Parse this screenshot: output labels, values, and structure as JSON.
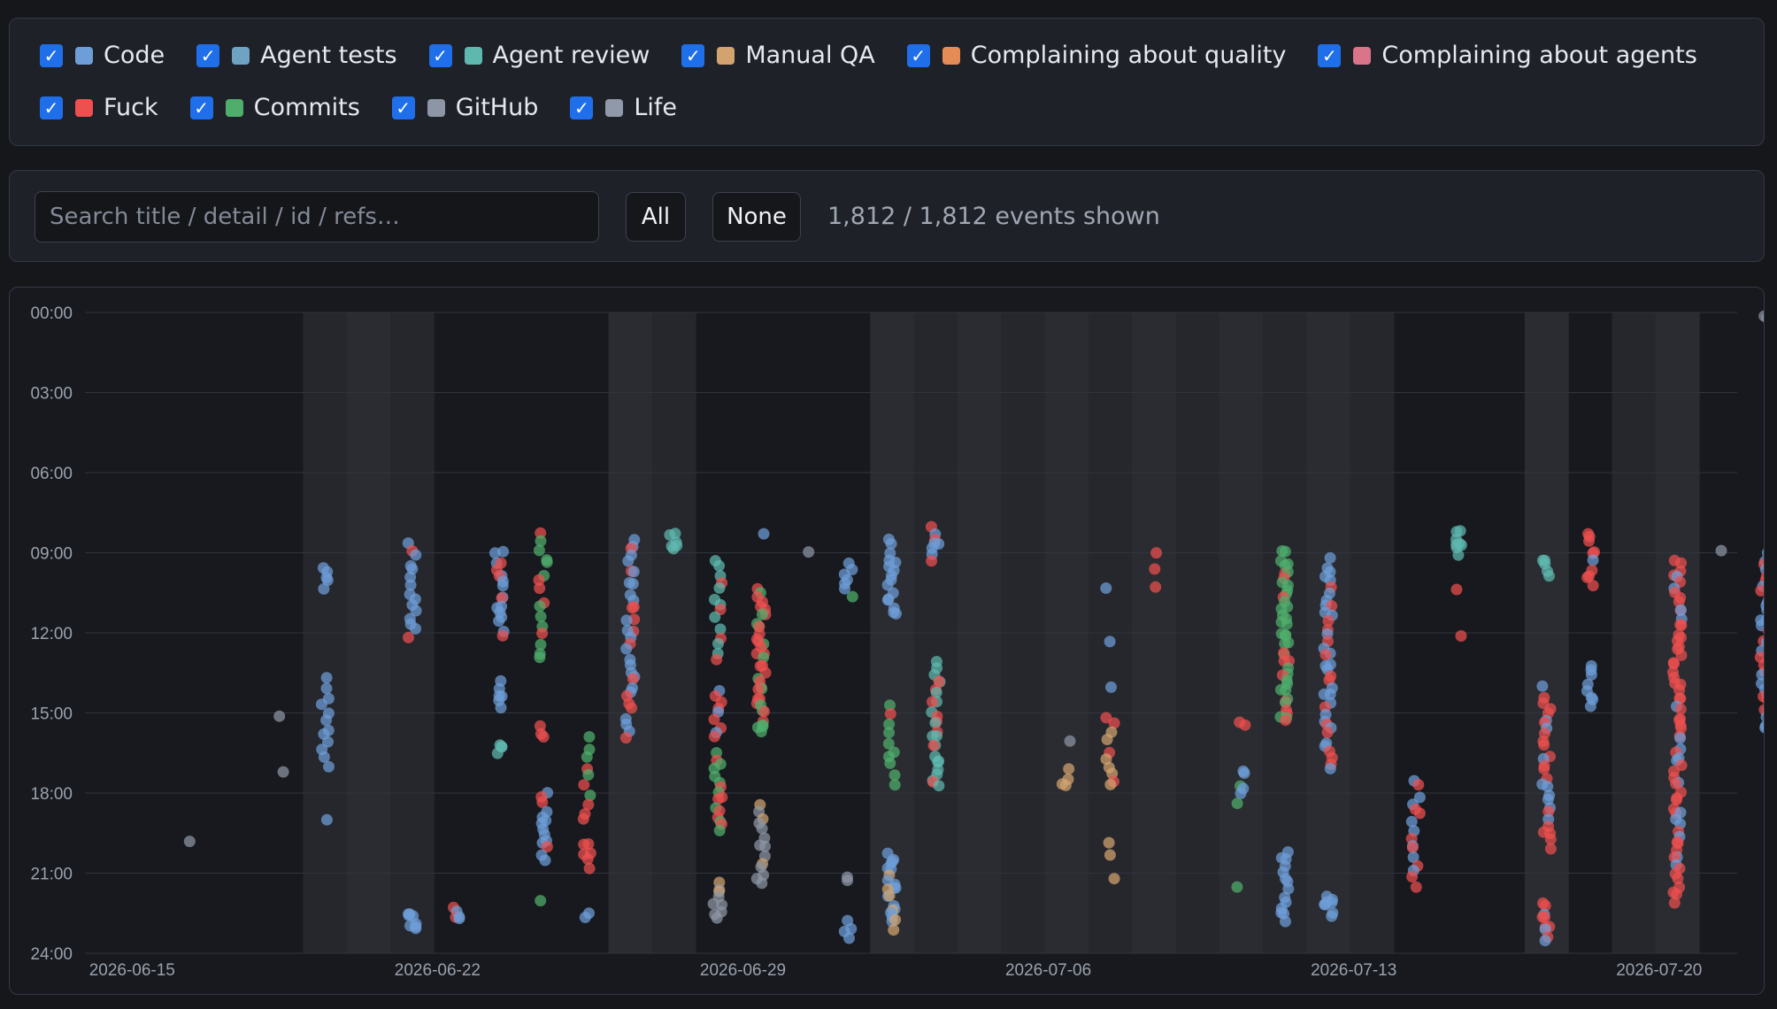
{
  "filters": [
    {
      "label": "Code",
      "color": "#6d9ed8",
      "checked": true
    },
    {
      "label": "Agent tests",
      "color": "#6fa3c4",
      "checked": true
    },
    {
      "label": "Agent review",
      "color": "#5eb8ae",
      "checked": true
    },
    {
      "label": "Manual QA",
      "color": "#d3a36f",
      "checked": true
    },
    {
      "label": "Complaining about quality",
      "color": "#e58b56",
      "checked": true
    },
    {
      "label": "Complaining about agents",
      "color": "#da7488",
      "checked": true
    },
    {
      "label": "Fuck",
      "color": "#ee4f4f",
      "checked": true
    },
    {
      "label": "Commits",
      "color": "#4fae6c",
      "checked": true
    },
    {
      "label": "GitHub",
      "color": "#8d96a5",
      "checked": true
    },
    {
      "label": "Life",
      "color": "#9099aa",
      "checked": true
    }
  ],
  "controls": {
    "search_placeholder": "Search title / detail / id / refs…",
    "search_value": "",
    "all_label": "All",
    "none_label": "None",
    "count_text": "1,812 / 1,812 events shown"
  },
  "chart_data": {
    "type": "scatter",
    "title": "",
    "x_axis": {
      "type": "date",
      "min": "2026-06-14",
      "max": "2026-07-23",
      "tick_labels": [
        "2026-06-15",
        "2026-06-22",
        "2026-06-29",
        "2026-07-06",
        "2026-07-13",
        "2026-07-20"
      ]
    },
    "y_axis": {
      "unit": "time of day (hours)",
      "reversed": true,
      "min": 0,
      "max": 24,
      "tick_labels": [
        "00:00",
        "03:00",
        "06:00",
        "09:00",
        "12:00",
        "15:00",
        "18:00",
        "21:00",
        "24:00"
      ]
    },
    "shaded_days": [
      "2026-06-19",
      "2026-06-20",
      "2026-06-21",
      "2026-06-26",
      "2026-06-27",
      "2026-07-02",
      "2026-07-03",
      "2026-07-04",
      "2026-07-05",
      "2026-07-06",
      "2026-07-07",
      "2026-07-08",
      "2026-07-09",
      "2026-07-10",
      "2026-07-11",
      "2026-07-12",
      "2026-07-13",
      "2026-07-17",
      "2026-07-19",
      "2026-07-20"
    ],
    "grid": true,
    "clusters": [
      {
        "date": "2026-06-16",
        "from": 19.7,
        "to": 19.7,
        "n": 1,
        "cat": "GitHub"
      },
      {
        "date": "2026-06-18",
        "from": 15.2,
        "to": 17.2,
        "n": 2,
        "cat": "GitHub"
      },
      {
        "date": "2026-06-19",
        "from": 9.5,
        "to": 10.3,
        "n": 5,
        "cat": "Code"
      },
      {
        "date": "2026-06-19",
        "from": 13.8,
        "to": 17.0,
        "n": 12,
        "cat": "Code"
      },
      {
        "date": "2026-06-19",
        "from": 18.9,
        "to": 18.9,
        "n": 1,
        "cat": "Code"
      },
      {
        "date": "2026-06-21",
        "from": 8.7,
        "to": 12.2,
        "n": 15,
        "cat": "Code",
        "extra": "Fuck"
      },
      {
        "date": "2026-06-21",
        "from": 22.4,
        "to": 23.1,
        "n": 8,
        "cat": "Code"
      },
      {
        "date": "2026-06-22",
        "from": 22.4,
        "to": 22.8,
        "n": 5,
        "cat": "Code",
        "extra": "Fuck"
      },
      {
        "date": "2026-06-23",
        "from": 8.9,
        "to": 12.0,
        "n": 18,
        "cat": "Code",
        "extra": "Fuck"
      },
      {
        "date": "2026-06-23",
        "from": 13.9,
        "to": 14.8,
        "n": 6,
        "cat": "Code"
      },
      {
        "date": "2026-06-23",
        "from": 16.2,
        "to": 16.5,
        "n": 4,
        "cat": "Agent review"
      },
      {
        "date": "2026-06-24",
        "from": 8.2,
        "to": 13.0,
        "n": 16,
        "cat": "Commits",
        "extra": "Fuck"
      },
      {
        "date": "2026-06-24",
        "from": 15.6,
        "to": 15.9,
        "n": 3,
        "cat": "Fuck"
      },
      {
        "date": "2026-06-24",
        "from": 18.1,
        "to": 20.4,
        "n": 14,
        "cat": "Code",
        "extra": "Fuck"
      },
      {
        "date": "2026-06-24",
        "from": 22.1,
        "to": 22.1,
        "n": 1,
        "cat": "Commits"
      },
      {
        "date": "2026-06-25",
        "from": 16.0,
        "to": 19.0,
        "n": 10,
        "cat": "Commits",
        "extra": "Fuck"
      },
      {
        "date": "2026-06-25",
        "from": 19.8,
        "to": 20.8,
        "n": 6,
        "cat": "Fuck"
      },
      {
        "date": "2026-06-25",
        "from": 22.6,
        "to": 22.6,
        "n": 2,
        "cat": "Code"
      },
      {
        "date": "2026-06-26",
        "from": 8.5,
        "to": 15.8,
        "n": 34,
        "cat": "Code",
        "extra": "Fuck"
      },
      {
        "date": "2026-06-27",
        "from": 8.3,
        "to": 8.9,
        "n": 6,
        "cat": "Agent review"
      },
      {
        "date": "2026-06-28",
        "from": 9.2,
        "to": 13.0,
        "n": 14,
        "cat": "Agent review",
        "extra": "Fuck"
      },
      {
        "date": "2026-06-28",
        "from": 14.1,
        "to": 16.0,
        "n": 9,
        "cat": "Fuck",
        "extra": "Code"
      },
      {
        "date": "2026-06-28",
        "from": 16.6,
        "to": 19.4,
        "n": 16,
        "cat": "Commits",
        "extra": "Fuck"
      },
      {
        "date": "2026-06-28",
        "from": 21.3,
        "to": 22.8,
        "n": 9,
        "cat": "GitHub",
        "extra": "Manual QA"
      },
      {
        "date": "2026-06-29",
        "from": 8.2,
        "to": 8.2,
        "n": 1,
        "cat": "Code"
      },
      {
        "date": "2026-06-29",
        "from": 10.4,
        "to": 15.8,
        "n": 38,
        "cat": "Fuck",
        "extra": "Commits"
      },
      {
        "date": "2026-06-29",
        "from": 18.4,
        "to": 21.5,
        "n": 14,
        "cat": "GitHub",
        "extra": "Manual QA"
      },
      {
        "date": "2026-06-30",
        "from": 9.1,
        "to": 9.1,
        "n": 1,
        "cat": "GitHub"
      },
      {
        "date": "2026-07-01",
        "from": 10.6,
        "to": 10.6,
        "n": 1,
        "cat": "Commits"
      },
      {
        "date": "2026-07-01",
        "from": 9.3,
        "to": 10.4,
        "n": 6,
        "cat": "Code"
      },
      {
        "date": "2026-07-01",
        "from": 21.2,
        "to": 21.4,
        "n": 2,
        "cat": "GitHub"
      },
      {
        "date": "2026-07-01",
        "from": 22.8,
        "to": 23.4,
        "n": 4,
        "cat": "Code"
      },
      {
        "date": "2026-07-02",
        "from": 8.6,
        "to": 11.4,
        "n": 16,
        "cat": "Code"
      },
      {
        "date": "2026-07-02",
        "from": 14.8,
        "to": 17.6,
        "n": 10,
        "cat": "Commits",
        "extra": "Fuck"
      },
      {
        "date": "2026-07-02",
        "from": 20.3,
        "to": 23.0,
        "n": 22,
        "cat": "Code",
        "extra": "Manual QA"
      },
      {
        "date": "2026-07-03",
        "from": 8.1,
        "to": 9.2,
        "n": 8,
        "cat": "Code",
        "extra": "Fuck"
      },
      {
        "date": "2026-07-03",
        "from": 13.2,
        "to": 17.8,
        "n": 26,
        "cat": "Agent review",
        "extra": "Fuck"
      },
      {
        "date": "2026-07-06",
        "from": 16.0,
        "to": 16.0,
        "n": 1,
        "cat": "GitHub"
      },
      {
        "date": "2026-07-06",
        "from": 17.2,
        "to": 17.8,
        "n": 4,
        "cat": "Manual QA"
      },
      {
        "date": "2026-07-07",
        "from": 10.4,
        "to": 14.0,
        "n": 3,
        "cat": "Code"
      },
      {
        "date": "2026-07-07",
        "from": 15.2,
        "to": 17.8,
        "n": 10,
        "cat": "Manual QA",
        "extra": "Fuck"
      },
      {
        "date": "2026-07-07",
        "from": 19.8,
        "to": 21.1,
        "n": 3,
        "cat": "Manual QA"
      },
      {
        "date": "2026-07-08",
        "from": 9.0,
        "to": 10.2,
        "n": 3,
        "cat": "Fuck"
      },
      {
        "date": "2026-07-10",
        "from": 15.3,
        "to": 15.4,
        "n": 2,
        "cat": "Fuck"
      },
      {
        "date": "2026-07-10",
        "from": 17.1,
        "to": 18.4,
        "n": 6,
        "cat": "Code",
        "extra": "Commits"
      },
      {
        "date": "2026-07-10",
        "from": 21.6,
        "to": 21.6,
        "n": 1,
        "cat": "Commits"
      },
      {
        "date": "2026-07-11",
        "from": 8.9,
        "to": 15.4,
        "n": 44,
        "cat": "Commits",
        "extra": "Fuck"
      },
      {
        "date": "2026-07-11",
        "from": 20.2,
        "to": 22.8,
        "n": 14,
        "cat": "Code"
      },
      {
        "date": "2026-07-12",
        "from": 9.3,
        "to": 17.0,
        "n": 40,
        "cat": "Code",
        "extra": "Fuck"
      },
      {
        "date": "2026-07-12",
        "from": 21.8,
        "to": 22.5,
        "n": 8,
        "cat": "Code"
      },
      {
        "date": "2026-07-14",
        "from": 17.5,
        "to": 21.5,
        "n": 16,
        "cat": "Code",
        "extra": "Fuck"
      },
      {
        "date": "2026-07-15",
        "from": 8.2,
        "to": 9.0,
        "n": 8,
        "cat": "Agent review"
      },
      {
        "date": "2026-07-15",
        "from": 10.4,
        "to": 12.1,
        "n": 2,
        "cat": "Fuck"
      },
      {
        "date": "2026-07-17",
        "from": 9.2,
        "to": 9.8,
        "n": 5,
        "cat": "Agent review"
      },
      {
        "date": "2026-07-17",
        "from": 14.1,
        "to": 20.0,
        "n": 28,
        "cat": "Fuck",
        "extra": "Code"
      },
      {
        "date": "2026-07-17",
        "from": 22.2,
        "to": 23.5,
        "n": 10,
        "cat": "Fuck",
        "extra": "Code"
      },
      {
        "date": "2026-07-18",
        "from": 8.2,
        "to": 10.2,
        "n": 10,
        "cat": "Fuck",
        "extra": "Code"
      },
      {
        "date": "2026-07-18",
        "from": 13.2,
        "to": 14.8,
        "n": 8,
        "cat": "Code"
      },
      {
        "date": "2026-07-20",
        "from": 9.2,
        "to": 22.0,
        "n": 70,
        "cat": "Fuck",
        "extra": "Code"
      },
      {
        "date": "2026-07-21",
        "from": 9.0,
        "to": 9.0,
        "n": 1,
        "cat": "GitHub"
      },
      {
        "date": "2026-07-22",
        "from": 0.1,
        "to": 0.2,
        "n": 2,
        "cat": "GitHub"
      },
      {
        "date": "2026-07-22",
        "from": 9.0,
        "to": 15.6,
        "n": 34,
        "cat": "Code",
        "extra": "Fuck"
      }
    ]
  }
}
